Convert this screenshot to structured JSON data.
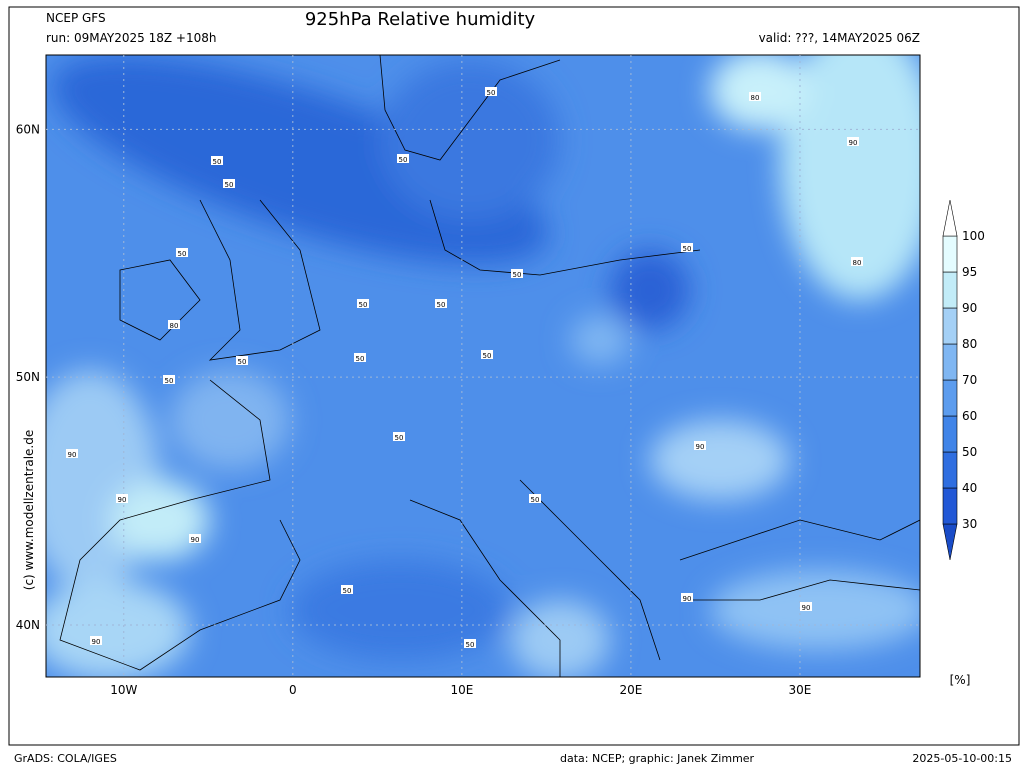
{
  "header": {
    "model": "NCEP GFS",
    "run": "run: 09MAY2025 18Z +108h",
    "title": "925hPa Relative humidity",
    "valid": "valid: ???, 14MAY2025 06Z"
  },
  "map": {
    "xlim": [
      -14.6,
      37.1
    ],
    "ylim": [
      37.9,
      63
    ],
    "xticks": [
      {
        "value": -10,
        "label": "10W"
      },
      0,
      {
        "value": 10,
        "label": "10E"
      },
      {
        "value": 20,
        "label": "20E"
      },
      {
        "value": 30,
        "label": "30E"
      }
    ],
    "yticks": [
      {
        "value": 40,
        "label": "40N"
      },
      {
        "value": 50,
        "label": "50N"
      },
      {
        "value": 60,
        "label": "60N"
      }
    ],
    "contour_labels": [
      "50",
      "50",
      "50",
      "50",
      "50",
      "50",
      "50",
      "50",
      "50",
      "50",
      "50",
      "50",
      "50",
      "50",
      "50",
      "50",
      "50",
      "80",
      "90",
      "80",
      "80",
      "90",
      "90",
      "90",
      "90",
      "90",
      "90",
      "90"
    ]
  },
  "colorbar": {
    "levels": [
      30,
      40,
      50,
      60,
      70,
      80,
      90,
      95,
      100
    ],
    "colors": [
      "#1a4cc8",
      "#2258d6",
      "#2f6ee0",
      "#4084e8",
      "#5c9cee",
      "#7fb6f2",
      "#a4d0f6",
      "#c2ecf8",
      "#e4fcff",
      "#ffffff"
    ],
    "unit": "[%]"
  },
  "credit": "(c) www.modellzentrale.de",
  "footer": {
    "software": "GrADS: COLA/IGES",
    "source": "data: NCEP; graphic: Janek Zimmer",
    "timestamp": "2025-05-10-00:15"
  }
}
